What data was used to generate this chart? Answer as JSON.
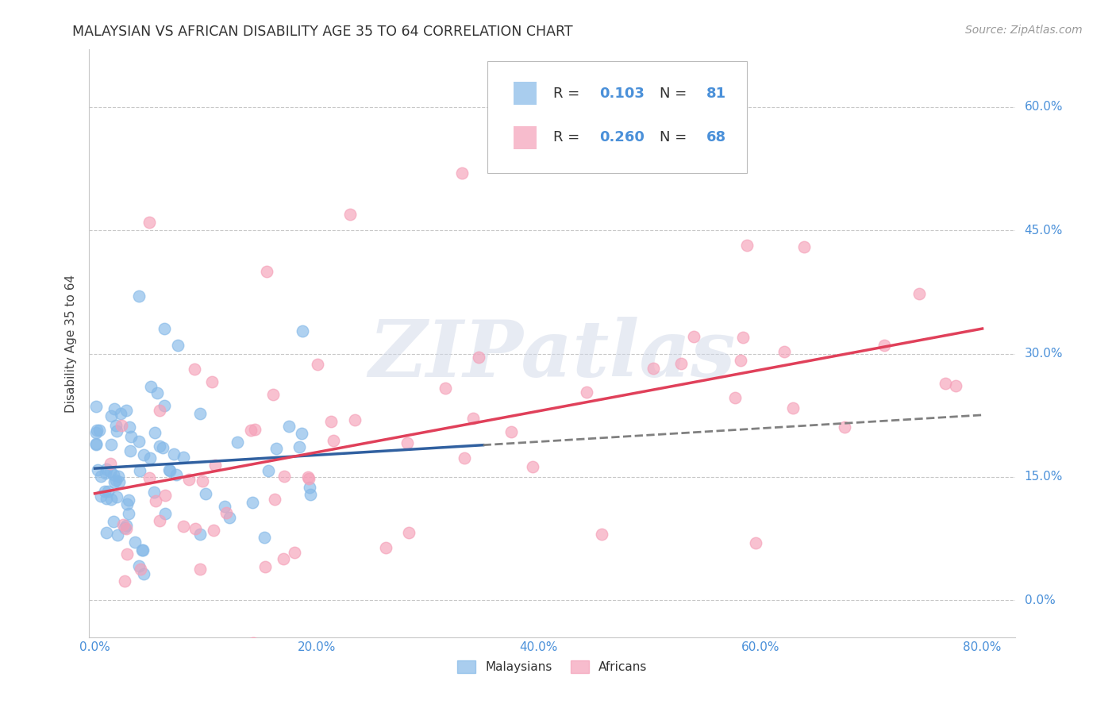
{
  "title": "MALAYSIAN VS AFRICAN DISABILITY AGE 35 TO 64 CORRELATION CHART",
  "source": "Source: ZipAtlas.com",
  "xlabel_ticks": [
    "0.0%",
    "20.0%",
    "40.0%",
    "60.0%",
    "80.0%"
  ],
  "ylabel_ticks": [
    "0.0%",
    "15.0%",
    "30.0%",
    "45.0%",
    "60.0%"
  ],
  "xlabel_vals": [
    0.0,
    0.2,
    0.4,
    0.6,
    0.8
  ],
  "ylabel_vals": [
    0.0,
    0.15,
    0.3,
    0.45,
    0.6
  ],
  "xlim": [
    -0.005,
    0.83
  ],
  "ylim": [
    -0.045,
    0.67
  ],
  "ylabel": "Disability Age 35 to 64",
  "malaysian_color": "#85b9e8",
  "african_color": "#f5a0b8",
  "malaysian_line_color": "#3060a0",
  "african_line_color": "#e0405a",
  "dashed_line_color": "#808080",
  "R_malaysian": 0.103,
  "N_malaysian": 81,
  "R_african": 0.26,
  "N_african": 68,
  "watermark_text": "ZIPatlas",
  "background_color": "#ffffff",
  "grid_color": "#c8c8c8",
  "title_color": "#333333",
  "tick_label_color": "#4a90d9",
  "source_color": "#999999",
  "legend_r_n_color": "#4a90d9",
  "legend_text_color": "#333333"
}
